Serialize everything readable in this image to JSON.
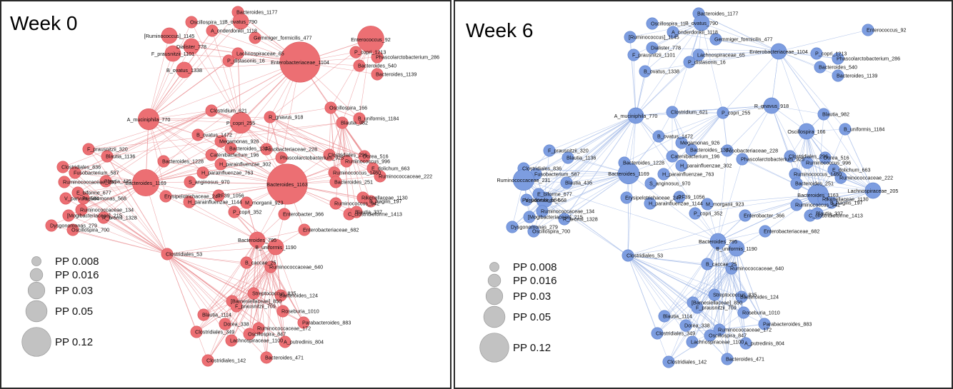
{
  "panels": [
    {
      "title": "Week 0",
      "edge_color": "#e8878b",
      "node_color": "#ec6f73",
      "node_stroke": "#d85257"
    },
    {
      "title": "Week 6",
      "edge_color": "#9eb6e6",
      "node_color": "#7d9de0",
      "node_stroke": "#5b7fcc"
    }
  ],
  "legend": [
    {
      "label": "PP 0.008",
      "value": 0.008
    },
    {
      "label": "PP 0.016",
      "value": 0.016
    },
    {
      "label": "PP 0.03",
      "value": 0.03
    },
    {
      "label": "PP 0.05",
      "value": 0.05
    },
    {
      "label": "PP 0.12",
      "value": 0.12
    }
  ],
  "legend_color": "#c2c2c2",
  "node_labels": {
    "n0": "Bacteroides_1177",
    "n1": "Oscillospira_11",
    "n2": "B_ovatus_790",
    "n3": "A_onderdonkii_1118",
    "n4": "Gemmiger_formicilis_477",
    "n5": "[Ruminococcus]_1145",
    "n6": "Dialister_778",
    "n7": "F_prausnitzii_1101",
    "n8": "Lachnospiraceae_65",
    "n9": "P_distasonis_16",
    "n10": "B_ovatus_1338",
    "n11": "Enterobacteriaceae_1104",
    "n12": "Enterococcus_92",
    "n13": "P_copri_1213",
    "n14": "Phascolarctobacterium_286",
    "n15": "Bacteroides_540",
    "n16": "Bacteroides_1139",
    "n17": "Oscillospira_166",
    "n18": "B_uniformis_1184",
    "n19": "Blautia_982",
    "n20": "Clostridium_621",
    "n21": "A_muciniphila_770",
    "n22": "P_copri_255",
    "n23": "R_gnavus_918",
    "n24": "B_ovatus_1472",
    "n25": "Megamonas_926",
    "n26": "Bacteroides_1337",
    "n27": "Catenibacterium_196",
    "n28": "Bacteroides_1228",
    "n29": "H_parainfluenzae_302",
    "n30": "H_parainfluenzae_763",
    "n31": "Fusobacteriaceae_228",
    "n32": "Phascolarctobacterium_925",
    "n33": "Clostridiales_296",
    "n34": "Dorea_516",
    "n35": "Ruminococcus_996",
    "n36": "E_dolichum_663",
    "n37": "Ruminococcus_1460",
    "n38": "Ruminococcaceae_222",
    "n39": "Lachnospiraceae_205",
    "n40": "F_prausnitzii_320",
    "n41": "Blautia_1136",
    "n42": "Clostridiales_836",
    "n43": "Fusobacterium_587",
    "n44": "Blautia_435",
    "n45": "Bacteroides_1169",
    "n46": "Ruminococcaceae_231",
    "n47": "E_biforme_677",
    "n48": "V_parvula_584",
    "n49": "Pseudomonas_568",
    "n50": "Erysipelotrichaceae_247",
    "n51": "S_anginosus_970",
    "n52": "H_parainfluenzae_1144",
    "n53": "RF39_1056",
    "n54": "Bacteroides_1163",
    "n55": "Bacteroides_251",
    "n56": "Rikenellaceae_1130",
    "n57": "Ruminococcus_942",
    "n58": "B_fragilis_197",
    "n59": "C_clostridioforme_1413",
    "n60": "Blautia_337",
    "n61": "Ruminococcaceae_134",
    "n62": "[Mogibacteriaceae]_215",
    "n63": "R_bromii_1328",
    "n64": "Dysgonomonas_279",
    "n65": "Oscillospira_700",
    "n66": "M_morganii_923",
    "n67": "P_copri_352",
    "n68": "Enterobacter_366",
    "n69": "Enterobacteriaceae_682",
    "n70": "Bacteroides_795",
    "n71": "Clostridiales_53",
    "n72": "B_uniformis_1190",
    "n73": "B_caccae_25",
    "n74": "Ruminococcaceae_640",
    "n75": "Streptococcus_835",
    "n76": "[Barnesiellaceae]_850",
    "n77": "F_prausnitzii_709",
    "n78": "Bacteroides_124",
    "n79": "Roseburia_1010",
    "n80": "Blautia_1114",
    "n81": "Dorea_338",
    "n82": "Parabacteroides_883",
    "n83": "Clostridiales_349",
    "n84": "Ruminococcaceae_172",
    "n85": "Oscillospira_847",
    "n86": "Lachnospiraceae_1100",
    "n87": "A_putredinis_804",
    "n88": "Clostridiales_142",
    "n89": "Bacteroides_471"
  },
  "week0": {
    "nodes": [
      {
        "id": "n0",
        "pp": 0.008
      },
      {
        "id": "n1",
        "pp": 0.008
      },
      {
        "id": "n2",
        "pp": 0.016
      },
      {
        "id": "n3",
        "pp": 0.008
      },
      {
        "id": "n4",
        "pp": 0.008
      },
      {
        "id": "n5",
        "pp": 0.016
      },
      {
        "id": "n6",
        "pp": 0.016
      },
      {
        "id": "n7",
        "pp": 0.016
      },
      {
        "id": "n8",
        "pp": 0.008
      },
      {
        "id": "n9",
        "pp": 0.008
      },
      {
        "id": "n10",
        "pp": 0.016
      },
      {
        "id": "n11",
        "pp": 0.12
      },
      {
        "id": "n12",
        "pp": 0.05
      },
      {
        "id": "n13",
        "pp": 0.008
      },
      {
        "id": "n14",
        "pp": 0.008
      },
      {
        "id": "n15",
        "pp": 0.008
      },
      {
        "id": "n16",
        "pp": 0.008
      },
      {
        "id": "n17",
        "pp": 0.008
      },
      {
        "id": "n18",
        "pp": 0.008
      },
      {
        "id": "n19",
        "pp": 0.008
      },
      {
        "id": "n20",
        "pp": 0.008
      },
      {
        "id": "n21",
        "pp": 0.03
      },
      {
        "id": "n22",
        "pp": 0.03
      },
      {
        "id": "n23",
        "pp": 0.008
      },
      {
        "id": "n24",
        "pp": 0.008
      },
      {
        "id": "n25",
        "pp": 0.008
      },
      {
        "id": "n26",
        "pp": 0.008
      },
      {
        "id": "n27",
        "pp": 0.008
      },
      {
        "id": "n28",
        "pp": 0.008
      },
      {
        "id": "n29",
        "pp": 0.008
      },
      {
        "id": "n30",
        "pp": 0.008
      },
      {
        "id": "n31",
        "pp": 0.008
      },
      {
        "id": "n32",
        "pp": 0.008
      },
      {
        "id": "n33",
        "pp": 0.008
      },
      {
        "id": "n34",
        "pp": 0.008
      },
      {
        "id": "n35",
        "pp": 0.008
      },
      {
        "id": "n36",
        "pp": 0.008
      },
      {
        "id": "n37",
        "pp": 0.008
      },
      {
        "id": "n38",
        "pp": 0.008
      },
      {
        "id": "n40",
        "pp": 0.008
      },
      {
        "id": "n41",
        "pp": 0.008
      },
      {
        "id": "n42",
        "pp": 0.008
      },
      {
        "id": "n43",
        "pp": 0.008
      },
      {
        "id": "n44",
        "pp": 0.008
      },
      {
        "id": "n45",
        "pp": 0.05
      },
      {
        "id": "n46",
        "pp": 0.008
      },
      {
        "id": "n47",
        "pp": 0.008
      },
      {
        "id": "n48",
        "pp": 0.008
      },
      {
        "id": "n49",
        "pp": 0.008
      },
      {
        "id": "n50",
        "pp": 0.008
      },
      {
        "id": "n51",
        "pp": 0.008
      },
      {
        "id": "n52",
        "pp": 0.008
      },
      {
        "id": "n53",
        "pp": 0.008
      },
      {
        "id": "n54",
        "pp": 0.12
      },
      {
        "id": "n55",
        "pp": 0.008
      },
      {
        "id": "n56",
        "pp": 0.008
      },
      {
        "id": "n57",
        "pp": 0.008
      },
      {
        "id": "n58",
        "pp": 0.008
      },
      {
        "id": "n59",
        "pp": 0.008
      },
      {
        "id": "n60",
        "pp": 0.008
      },
      {
        "id": "n61",
        "pp": 0.008
      },
      {
        "id": "n62",
        "pp": 0.008
      },
      {
        "id": "n63",
        "pp": 0.008
      },
      {
        "id": "n64",
        "pp": 0.008
      },
      {
        "id": "n65",
        "pp": 0.008
      },
      {
        "id": "n66",
        "pp": 0.008
      },
      {
        "id": "n67",
        "pp": 0.008
      },
      {
        "id": "n68",
        "pp": 0.008
      },
      {
        "id": "n69",
        "pp": 0.008
      },
      {
        "id": "n70",
        "pp": 0.016
      },
      {
        "id": "n71",
        "pp": 0.008
      },
      {
        "id": "n72",
        "pp": 0.016
      },
      {
        "id": "n73",
        "pp": 0.008
      },
      {
        "id": "n74",
        "pp": 0.008
      },
      {
        "id": "n75",
        "pp": 0.008
      },
      {
        "id": "n76",
        "pp": 0.008
      },
      {
        "id": "n77",
        "pp": 0.008
      },
      {
        "id": "n78",
        "pp": 0.008
      },
      {
        "id": "n79",
        "pp": 0.008
      },
      {
        "id": "n80",
        "pp": 0.008
      },
      {
        "id": "n81",
        "pp": 0.008
      },
      {
        "id": "n82",
        "pp": 0.008
      },
      {
        "id": "n83",
        "pp": 0.008
      },
      {
        "id": "n84",
        "pp": 0.008
      },
      {
        "id": "n85",
        "pp": 0.008
      },
      {
        "id": "n86",
        "pp": 0.008
      },
      {
        "id": "n87",
        "pp": 0.008
      },
      {
        "id": "n88",
        "pp": 0.008
      },
      {
        "id": "n89",
        "pp": 0.008
      }
    ]
  },
  "week6": {
    "nodes": [
      {
        "id": "n0",
        "pp": 0.008
      },
      {
        "id": "n1",
        "pp": 0.008
      },
      {
        "id": "n2",
        "pp": 0.016
      },
      {
        "id": "n3",
        "pp": 0.008
      },
      {
        "id": "n4",
        "pp": 0.008
      },
      {
        "id": "n5",
        "pp": 0.008
      },
      {
        "id": "n6",
        "pp": 0.008
      },
      {
        "id": "n7",
        "pp": 0.008
      },
      {
        "id": "n8",
        "pp": 0.008
      },
      {
        "id": "n9",
        "pp": 0.008
      },
      {
        "id": "n10",
        "pp": 0.008
      },
      {
        "id": "n11",
        "pp": 0.016
      },
      {
        "id": "n12",
        "pp": 0.008
      },
      {
        "id": "n13",
        "pp": 0.008
      },
      {
        "id": "n14",
        "pp": 0.008
      },
      {
        "id": "n15",
        "pp": 0.008
      },
      {
        "id": "n16",
        "pp": 0.008
      },
      {
        "id": "n17",
        "pp": 0.016
      },
      {
        "id": "n18",
        "pp": 0.008
      },
      {
        "id": "n19",
        "pp": 0.008
      },
      {
        "id": "n20",
        "pp": 0.008
      },
      {
        "id": "n21",
        "pp": 0.016
      },
      {
        "id": "n22",
        "pp": 0.008
      },
      {
        "id": "n23",
        "pp": 0.016
      },
      {
        "id": "n24",
        "pp": 0.008
      },
      {
        "id": "n25",
        "pp": 0.008
      },
      {
        "id": "n26",
        "pp": 0.008
      },
      {
        "id": "n27",
        "pp": 0.008
      },
      {
        "id": "n28",
        "pp": 0.008
      },
      {
        "id": "n29",
        "pp": 0.008
      },
      {
        "id": "n30",
        "pp": 0.008
      },
      {
        "id": "n31",
        "pp": 0.008
      },
      {
        "id": "n32",
        "pp": 0.008
      },
      {
        "id": "n33",
        "pp": 0.008
      },
      {
        "id": "n34",
        "pp": 0.008
      },
      {
        "id": "n35",
        "pp": 0.008
      },
      {
        "id": "n36",
        "pp": 0.008
      },
      {
        "id": "n37",
        "pp": 0.008
      },
      {
        "id": "n38",
        "pp": 0.008
      },
      {
        "id": "n39",
        "pp": 0.016
      },
      {
        "id": "n40",
        "pp": 0.008
      },
      {
        "id": "n41",
        "pp": 0.008
      },
      {
        "id": "n42",
        "pp": 0.008
      },
      {
        "id": "n43",
        "pp": 0.008
      },
      {
        "id": "n44",
        "pp": 0.008
      },
      {
        "id": "n45",
        "pp": 0.03
      },
      {
        "id": "n46",
        "pp": 0.03
      },
      {
        "id": "n47",
        "pp": 0.008
      },
      {
        "id": "n48",
        "pp": 0.008
      },
      {
        "id": "n49",
        "pp": 0.016
      },
      {
        "id": "n50",
        "pp": 0.008
      },
      {
        "id": "n51",
        "pp": 0.008
      },
      {
        "id": "n52",
        "pp": 0.008
      },
      {
        "id": "n53",
        "pp": 0.008
      },
      {
        "id": "n54",
        "pp": 0.03
      },
      {
        "id": "n55",
        "pp": 0.008
      },
      {
        "id": "n56",
        "pp": 0.008
      },
      {
        "id": "n57",
        "pp": 0.008
      },
      {
        "id": "n58",
        "pp": 0.008
      },
      {
        "id": "n59",
        "pp": 0.008
      },
      {
        "id": "n60",
        "pp": 0.008
      },
      {
        "id": "n61",
        "pp": 0.008
      },
      {
        "id": "n62",
        "pp": 0.008
      },
      {
        "id": "n63",
        "pp": 0.008
      },
      {
        "id": "n64",
        "pp": 0.008
      },
      {
        "id": "n65",
        "pp": 0.008
      },
      {
        "id": "n66",
        "pp": 0.008
      },
      {
        "id": "n67",
        "pp": 0.008
      },
      {
        "id": "n68",
        "pp": 0.008
      },
      {
        "id": "n69",
        "pp": 0.008
      },
      {
        "id": "n70",
        "pp": 0.016
      },
      {
        "id": "n71",
        "pp": 0.008
      },
      {
        "id": "n72",
        "pp": 0.016
      },
      {
        "id": "n73",
        "pp": 0.008
      },
      {
        "id": "n74",
        "pp": 0.008
      },
      {
        "id": "n75",
        "pp": 0.008
      },
      {
        "id": "n76",
        "pp": 0.008
      },
      {
        "id": "n77",
        "pp": 0.008
      },
      {
        "id": "n78",
        "pp": 0.008
      },
      {
        "id": "n79",
        "pp": 0.008
      },
      {
        "id": "n80",
        "pp": 0.008
      },
      {
        "id": "n81",
        "pp": 0.008
      },
      {
        "id": "n82",
        "pp": 0.008
      },
      {
        "id": "n83",
        "pp": 0.008
      },
      {
        "id": "n84",
        "pp": 0.008
      },
      {
        "id": "n85",
        "pp": 0.008
      },
      {
        "id": "n86",
        "pp": 0.008
      },
      {
        "id": "n87",
        "pp": 0.008
      },
      {
        "id": "n88",
        "pp": 0.008
      },
      {
        "id": "n89",
        "pp": 0.008
      }
    ]
  }
}
